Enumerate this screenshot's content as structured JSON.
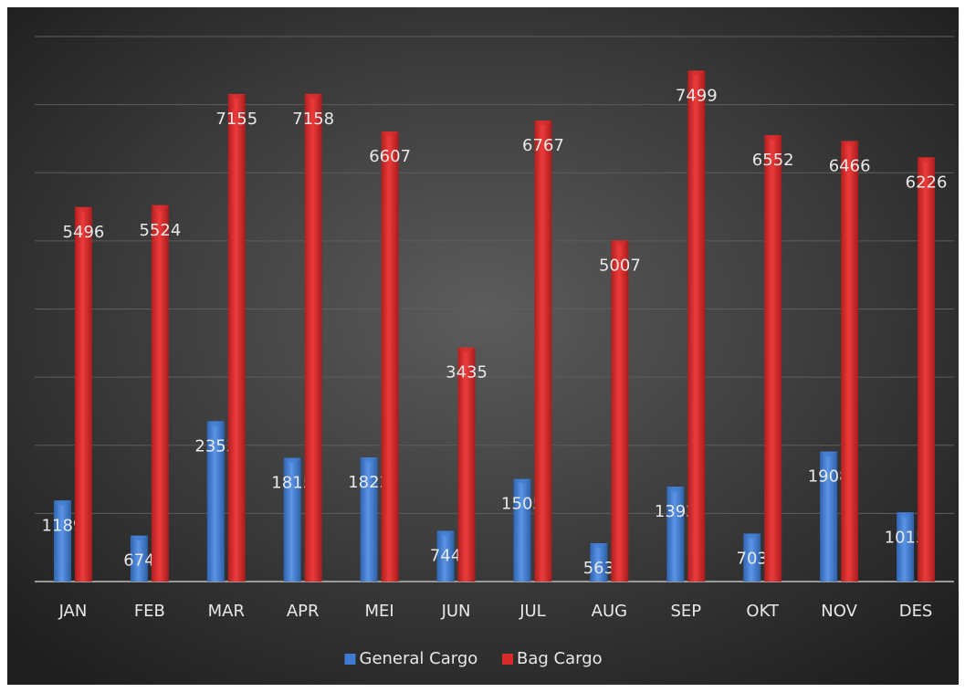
{
  "chart_data": {
    "type": "bar",
    "categories": [
      "JAN",
      "FEB",
      "MAR",
      "APR",
      "MEI",
      "JUN",
      "JUL",
      "AUG",
      "SEP",
      "OKT",
      "NOV",
      "DES"
    ],
    "series": [
      {
        "name": "General Cargo",
        "color": "#3f7bd0",
        "values": [
          1189,
          674,
          2353,
          1815,
          1822,
          744,
          1505,
          563,
          1392,
          703,
          1908,
          1015
        ]
      },
      {
        "name": "Bag Cargo",
        "color": "#d62b2b",
        "values": [
          5496,
          5524,
          7155,
          7158,
          6607,
          3435,
          6767,
          5007,
          7499,
          6552,
          6466,
          6226
        ]
      }
    ],
    "ylim": [
      0,
      8000
    ],
    "yticks": [
      0,
      1000,
      2000,
      3000,
      4000,
      5000,
      6000,
      7000,
      8000
    ],
    "grid": true,
    "legend": "bottom"
  }
}
